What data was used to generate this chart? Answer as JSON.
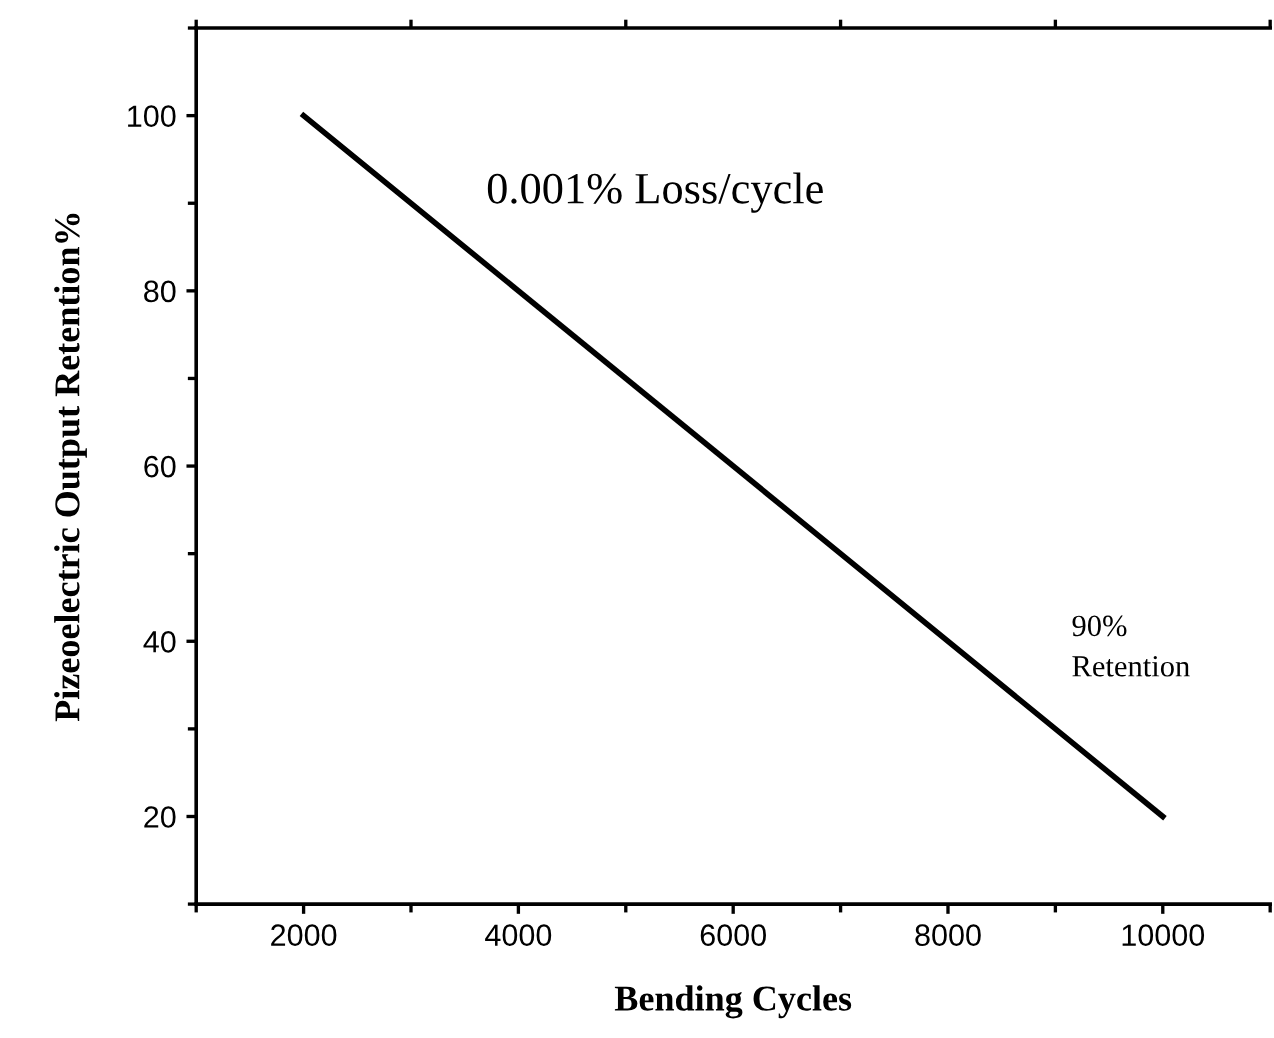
{
  "chart_data": {
    "type": "line",
    "xlabel": "Bending Cycles",
    "ylabel": "Pizeoelectric Output Retention%",
    "x": [
      2000,
      10000
    ],
    "series": [
      {
        "color": "#000000",
        "values": [
          100,
          20
        ]
      }
    ],
    "xlim": [
      1000,
      11000
    ],
    "xticks": [
      2000,
      4000,
      6000,
      8000,
      10000
    ],
    "ylim": [
      10,
      110
    ],
    "yticks": [
      20,
      40,
      60,
      80,
      100
    ],
    "grid": false,
    "legend": false,
    "marker": "none",
    "line_style": "solid",
    "annotations": [
      "0.001% Loss/cycle",
      "90%\nRetention"
    ]
  }
}
